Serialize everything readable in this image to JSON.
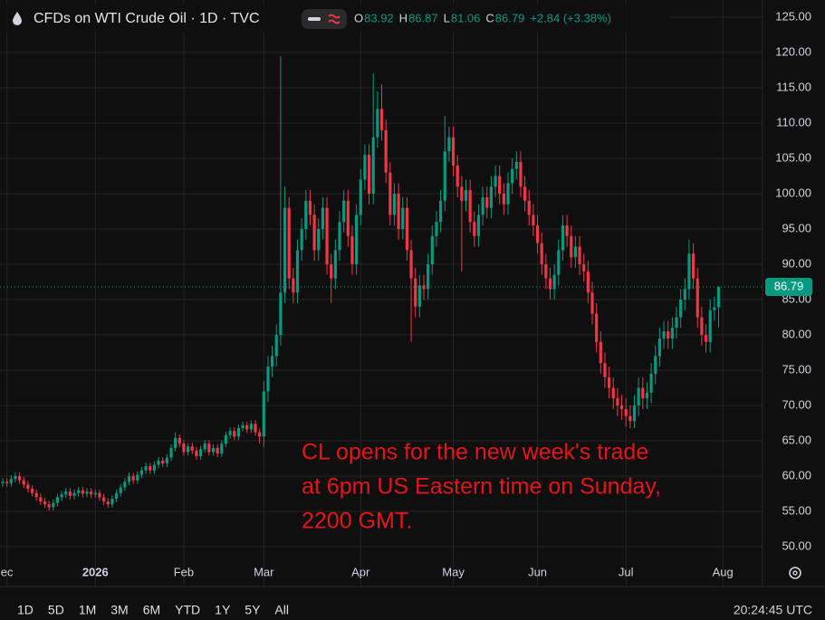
{
  "chart_data": {
    "type": "candlestick",
    "title": "CFDs on WTI Crude Oil · 1D · TVC",
    "ohlc_letters": [
      "O",
      "H",
      "L",
      "C"
    ],
    "change": "+2.84 (+3.38%)",
    "annotation": [
      "CL opens for the new week's trade",
      "at 6pm US Eastern time on Sunday,",
      "2200 GMT."
    ],
    "ranges": [
      "1D",
      "5D",
      "1M",
      "3M",
      "6M",
      "YTD",
      "1Y",
      "5Y",
      "All"
    ],
    "clock": "20:24:45 UTC",
    "up_color": "#089981",
    "down_color": "#f23645",
    "annotation_color": "#e3161b",
    "grid": true,
    "ylim": [
      47.95,
      127.44
    ],
    "yticks": [
      {
        "value": 50,
        "label": "50.00"
      },
      {
        "value": 55,
        "label": "55.00"
      },
      {
        "value": 60,
        "label": "60.00"
      },
      {
        "value": 65,
        "label": "65.00"
      },
      {
        "value": 70,
        "label": "70.00"
      },
      {
        "value": 75,
        "label": "75.00"
      },
      {
        "value": 80,
        "label": "80.00"
      },
      {
        "value": 85,
        "label": "85.00"
      },
      {
        "value": 90,
        "label": "90.00"
      },
      {
        "value": 95,
        "label": "95.00"
      },
      {
        "value": 100,
        "label": "100.00"
      },
      {
        "value": 105,
        "label": "105.00"
      },
      {
        "value": 110,
        "label": "110.00"
      },
      {
        "value": 115,
        "label": "115.00"
      },
      {
        "value": 120,
        "label": "120.00"
      },
      {
        "value": 125,
        "label": "125.00"
      }
    ],
    "xticks": [
      {
        "value": 1,
        "label": "ec"
      },
      {
        "value": 22,
        "label": "2026"
      },
      {
        "value": 43,
        "label": "Feb"
      },
      {
        "value": 62,
        "label": "Mar"
      },
      {
        "value": 85,
        "label": "Apr"
      },
      {
        "value": 107,
        "label": "May"
      },
      {
        "value": 127,
        "label": "Jun"
      },
      {
        "value": 148,
        "label": "Jul"
      },
      {
        "value": 171,
        "label": "Aug"
      }
    ],
    "open": [
      59.0,
      59.2,
      59.0,
      59.6,
      60.0,
      59.4,
      58.8,
      58.2,
      57.6,
      57.0,
      56.4,
      56.0,
      55.6,
      56.2,
      57.0,
      57.4,
      57.8,
      57.2,
      57.6,
      58.0,
      57.5,
      57.8,
      57.4,
      57.6,
      57.0,
      56.4,
      56.0,
      56.8,
      57.6,
      58.4,
      59.2,
      60.0,
      59.4,
      60.2,
      60.8,
      61.4,
      60.8,
      61.6,
      62.2,
      61.8,
      62.6,
      64.0,
      65.4,
      64.6,
      63.4,
      64.2,
      63.6,
      62.8,
      63.8,
      64.6,
      63.4,
      64.0,
      63.2,
      64.6,
      65.8,
      66.4,
      65.6,
      66.8,
      67.2,
      66.6,
      67.4,
      66.2,
      65.6,
      72.0,
      75.5,
      77.0,
      80.0,
      86.0,
      98.0,
      88.0,
      86.0,
      92.0,
      95.0,
      99.0,
      97.0,
      92.0,
      95.0,
      98.0,
      90.0,
      88.0,
      92.0,
      96.0,
      99.0,
      94.0,
      90.0,
      97.0,
      102.0,
      105.5,
      100.0,
      108.0,
      112.0,
      109.0,
      103.0,
      97.0,
      100.0,
      95.0,
      98.0,
      92.0,
      88.0,
      84.0,
      87.0,
      86.5,
      90.0,
      94.0,
      96.0,
      99.0,
      106.0,
      108.0,
      104.0,
      101.0,
      99.0,
      100.5,
      96.0,
      94.0,
      97.0,
      99.5,
      98.0,
      101.0,
      102.5,
      100.0,
      98.5,
      101.5,
      103.5,
      104.5,
      101.0,
      99.0,
      97.0,
      95.5,
      93.0,
      90.0,
      88.0,
      86.5,
      88.5,
      92.0,
      95.5,
      94.0,
      91.0,
      92.5,
      90.0,
      89.0,
      86.0,
      83.0,
      79.0,
      76.0,
      74.0,
      72.5,
      71.0,
      70.0,
      69.5,
      68.5,
      67.8,
      70.0,
      72.5,
      71.0,
      71.8,
      74.5,
      77.0,
      79.5,
      80.5,
      79.5,
      81.0,
      82.5,
      85.0,
      86.5,
      91.5,
      88.0,
      82.5,
      80.0,
      79.0,
      83.5,
      83.92
    ],
    "high": [
      59.7,
      59.7,
      60.1,
      60.5,
      60.5,
      59.9,
      59.3,
      58.7,
      58.1,
      57.5,
      56.9,
      56.5,
      56.7,
      57.5,
      57.9,
      58.3,
      58.3,
      58.1,
      58.5,
      58.5,
      58.3,
      58.3,
      58.1,
      58.1,
      57.5,
      56.9,
      57.3,
      58.1,
      58.9,
      59.7,
      60.5,
      60.5,
      60.7,
      61.3,
      61.9,
      61.9,
      62.1,
      62.7,
      62.7,
      63.1,
      64.5,
      66.2,
      65.9,
      65.1,
      64.7,
      64.7,
      64.1,
      64.3,
      65.1,
      65.1,
      64.5,
      64.5,
      65.1,
      66.3,
      66.9,
      66.9,
      67.3,
      67.7,
      67.7,
      67.9,
      67.9,
      66.7,
      73.5,
      77.0,
      78.5,
      81.5,
      119.5,
      101.0,
      99.5,
      89.5,
      93.5,
      96.5,
      100.5,
      100.5,
      98.5,
      96.5,
      99.5,
      99.5,
      91.5,
      93.5,
      97.5,
      100.5,
      100.5,
      95.5,
      98.5,
      103.5,
      107.0,
      107.0,
      117.0,
      114.5,
      115.5,
      110.5,
      104.5,
      101.5,
      101.5,
      99.5,
      99.5,
      93.5,
      89.5,
      88.5,
      88.5,
      91.5,
      95.5,
      97.5,
      100.5,
      111.0,
      109.5,
      109.5,
      105.5,
      102.5,
      102.0,
      102.0,
      97.5,
      98.5,
      101.0,
      101.0,
      102.5,
      104.0,
      104.0,
      101.5,
      103.0,
      105.0,
      106.0,
      106.0,
      102.5,
      100.5,
      98.5,
      97.0,
      94.5,
      91.5,
      89.5,
      90.0,
      93.5,
      97.0,
      97.0,
      95.5,
      94.0,
      94.0,
      91.5,
      90.5,
      87.5,
      84.5,
      80.5,
      77.5,
      75.5,
      74.0,
      72.5,
      71.5,
      71.0,
      70.0,
      71.5,
      74.0,
      74.0,
      73.3,
      76.0,
      78.5,
      81.0,
      82.0,
      82.0,
      82.5,
      84.0,
      86.5,
      88.0,
      93.5,
      93.0,
      89.5,
      84.0,
      81.5,
      85.0,
      85.4,
      86.87
    ],
    "low": [
      58.5,
      58.5,
      58.5,
      59.1,
      58.9,
      58.3,
      57.7,
      57.1,
      56.5,
      55.9,
      55.5,
      55.1,
      55.1,
      55.7,
      56.5,
      56.9,
      56.7,
      56.7,
      57.1,
      57.0,
      57.0,
      56.9,
      56.9,
      56.5,
      55.9,
      55.5,
      55.5,
      56.3,
      57.1,
      57.9,
      58.7,
      58.9,
      58.9,
      59.7,
      60.3,
      60.3,
      60.3,
      61.1,
      61.3,
      61.3,
      62.1,
      63.5,
      64.1,
      62.9,
      62.9,
      63.1,
      62.3,
      62.3,
      63.3,
      62.9,
      62.9,
      62.7,
      62.7,
      64.1,
      65.3,
      65.1,
      65.1,
      66.3,
      66.1,
      66.1,
      65.7,
      64.6,
      64.1,
      70.5,
      74.0,
      75.5,
      78.5,
      84.5,
      86.5,
      84.5,
      84.5,
      90.5,
      93.5,
      95.5,
      90.5,
      90.5,
      93.5,
      88.5,
      84.5,
      86.5,
      90.5,
      94.5,
      92.5,
      88.5,
      88.5,
      95.5,
      100.5,
      98.5,
      98.5,
      106.5,
      107.5,
      101.5,
      95.5,
      95.5,
      93.5,
      93.5,
      90.5,
      79.0,
      82.5,
      82.5,
      85.0,
      85.0,
      88.5,
      92.5,
      94.5,
      97.5,
      104.5,
      102.5,
      99.5,
      89.0,
      97.5,
      94.5,
      92.5,
      92.5,
      95.5,
      96.5,
      96.5,
      99.5,
      98.5,
      97.0,
      97.0,
      100.0,
      102.0,
      99.5,
      97.5,
      95.5,
      94.0,
      91.5,
      88.5,
      86.5,
      85.0,
      85.0,
      87.0,
      90.5,
      92.5,
      89.5,
      89.5,
      88.5,
      87.5,
      84.5,
      81.5,
      77.5,
      74.5,
      72.5,
      71.0,
      69.5,
      68.5,
      68.0,
      67.0,
      66.8,
      66.8,
      68.5,
      69.5,
      69.5,
      70.3,
      73.0,
      75.5,
      78.0,
      78.0,
      78.0,
      79.5,
      81.0,
      83.5,
      85.0,
      86.5,
      81.0,
      78.5,
      77.5,
      77.5,
      82.0,
      81.06
    ],
    "close": [
      59.2,
      59.0,
      59.6,
      60.0,
      59.4,
      58.8,
      58.2,
      57.6,
      57.0,
      56.4,
      56.0,
      55.6,
      56.2,
      57.0,
      57.4,
      57.8,
      57.2,
      57.6,
      58.0,
      57.5,
      57.8,
      57.4,
      57.6,
      57.0,
      56.4,
      56.0,
      56.8,
      57.6,
      58.4,
      59.2,
      60.0,
      59.4,
      60.2,
      60.8,
      61.4,
      60.8,
      61.6,
      62.2,
      61.8,
      62.6,
      64.0,
      65.4,
      64.6,
      63.4,
      64.2,
      63.6,
      62.8,
      63.8,
      64.6,
      63.4,
      64.0,
      63.2,
      64.6,
      65.8,
      66.4,
      65.6,
      66.8,
      67.2,
      66.6,
      67.4,
      66.2,
      65.6,
      72.0,
      75.5,
      77.0,
      80.0,
      86.0,
      98.0,
      88.0,
      86.0,
      92.0,
      95.0,
      99.0,
      97.0,
      92.0,
      95.0,
      98.0,
      90.0,
      88.0,
      92.0,
      96.0,
      99.0,
      94.0,
      90.0,
      97.0,
      102.0,
      105.5,
      100.0,
      108.0,
      112.0,
      109.0,
      103.0,
      97.0,
      100.0,
      95.0,
      98.0,
      92.0,
      88.0,
      84.0,
      87.0,
      86.5,
      90.0,
      94.0,
      96.0,
      99.0,
      106.0,
      108.0,
      104.0,
      101.0,
      99.0,
      100.5,
      96.0,
      94.0,
      97.0,
      99.5,
      98.0,
      101.0,
      102.5,
      100.0,
      98.5,
      101.5,
      103.5,
      104.5,
      101.0,
      99.0,
      97.0,
      95.5,
      93.0,
      90.0,
      88.0,
      86.5,
      88.5,
      92.0,
      95.5,
      94.0,
      91.0,
      92.5,
      90.0,
      89.0,
      86.0,
      83.0,
      79.0,
      76.0,
      74.0,
      72.5,
      71.0,
      70.0,
      69.5,
      68.5,
      67.8,
      70.0,
      72.5,
      71.0,
      71.8,
      74.5,
      77.0,
      79.5,
      80.5,
      79.5,
      81.0,
      82.5,
      85.0,
      86.5,
      91.5,
      88.0,
      82.5,
      80.0,
      79.0,
      83.5,
      83.92,
      86.79
    ]
  }
}
